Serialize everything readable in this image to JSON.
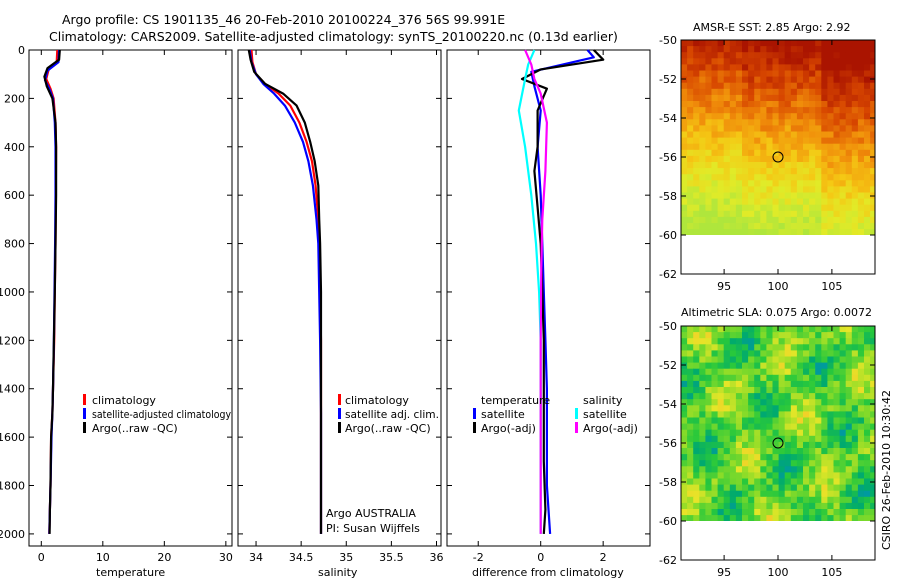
{
  "header": {
    "line1": "Argo profile: CS 1901135_46 20-Feb-2010 20100224_376 56S 99.991E",
    "line2": "Climatology: CARS2009. Satellite-adjusted climatology: synTS_20100220.nc (0.13d earlier)"
  },
  "footer_stamp": "CSIRO 26-Feb-2010 10:30:42",
  "colors": {
    "red": "#ff0000",
    "blue": "#0000ff",
    "black": "#000000",
    "cyan": "#00ffff",
    "magenta": "#ff00ff"
  },
  "chart_data": [
    {
      "type": "line",
      "id": "temperature",
      "xlabel": "temperature",
      "ylabel": "",
      "xlim": [
        -2,
        31
      ],
      "ylim": [
        2050,
        0
      ],
      "xticks": [
        0,
        10,
        20,
        30
      ],
      "xtick_labels": [
        "0",
        "10",
        "20",
        "30"
      ],
      "yticks": [
        0,
        200,
        400,
        600,
        800,
        1000,
        1200,
        1400,
        1600,
        1800,
        2000
      ],
      "ytick_labels": [
        "0",
        "200",
        "400",
        "600",
        "800",
        "1000",
        "1200",
        "1400",
        "1600",
        "1800",
        "2000"
      ],
      "legend": {
        "position": "lower-middle",
        "entries": [
          "climatology",
          "satellite-adjusted climatology",
          "Argo(..raw -QC)"
        ]
      },
      "series": [
        {
          "name": "climatology",
          "color": "red",
          "x": [
            2.6,
            2.5,
            1.2,
            0.8,
            1.5,
            2.0,
            2.3,
            2.4,
            2.35,
            2.3,
            2.2,
            2.1,
            1.9,
            1.8,
            1.6,
            1.5,
            1.4,
            1.3
          ],
          "y": [
            0,
            50,
            80,
            120,
            160,
            200,
            300,
            400,
            600,
            800,
            1000,
            1200,
            1400,
            1500,
            1600,
            1800,
            1900,
            2000
          ]
        },
        {
          "name": "satellite-adjusted climatology",
          "color": "blue",
          "x": [
            2.9,
            2.8,
            1.0,
            0.6,
            1.3,
            1.9,
            2.2,
            2.3,
            2.3,
            2.25,
            2.15,
            2.05,
            1.9,
            1.8,
            1.65,
            1.5,
            1.4,
            1.3
          ],
          "y": [
            0,
            50,
            85,
            125,
            160,
            200,
            300,
            400,
            600,
            800,
            1000,
            1200,
            1400,
            1500,
            1600,
            1800,
            1900,
            2000
          ]
        },
        {
          "name": "Argo(..raw -QC)",
          "color": "black",
          "x": [
            3.0,
            2.9,
            1.0,
            0.5,
            0.9,
            1.8,
            2.3,
            2.4,
            2.4,
            2.3,
            2.2,
            2.05,
            1.9,
            1.8,
            1.6,
            1.5,
            1.4,
            1.35
          ],
          "y": [
            0,
            40,
            75,
            110,
            150,
            200,
            300,
            400,
            600,
            800,
            1000,
            1200,
            1400,
            1500,
            1600,
            1800,
            1900,
            2000
          ]
        }
      ]
    },
    {
      "type": "line",
      "id": "salinity",
      "xlabel": "salinity",
      "ylabel": "",
      "xlim": [
        33.8,
        36.05
      ],
      "ylim": [
        2050,
        0
      ],
      "xticks": [
        34,
        34.5,
        35,
        35.5,
        36
      ],
      "xtick_labels": [
        "34",
        "34.5",
        "35",
        "35.5",
        "36"
      ],
      "legend": {
        "position": "lower-middle",
        "entries": [
          "climatology",
          "satellite adj. clim.",
          "Argo(..raw -QC)"
        ]
      },
      "annotation": {
        "line1": "Argo AUSTRALIA",
        "line2": "PI: Susan Wijffels"
      },
      "series": [
        {
          "name": "climatology",
          "color": "red",
          "x": [
            33.95,
            33.96,
            34.0,
            34.1,
            34.25,
            34.38,
            34.48,
            34.56,
            34.62,
            34.66,
            34.69,
            34.7,
            34.71,
            34.72,
            34.72,
            34.72,
            34.72
          ],
          "y": [
            0,
            50,
            100,
            140,
            180,
            230,
            300,
            380,
            460,
            560,
            700,
            800,
            1000,
            1200,
            1500,
            1800,
            2000
          ]
        },
        {
          "name": "satellite adj. clim.",
          "color": "blue",
          "x": [
            33.93,
            33.95,
            34.0,
            34.08,
            34.2,
            34.32,
            34.43,
            34.52,
            34.58,
            34.63,
            34.67,
            34.69,
            34.7,
            34.71,
            34.72,
            34.72,
            34.72
          ],
          "y": [
            0,
            50,
            100,
            140,
            180,
            230,
            300,
            380,
            460,
            560,
            700,
            800,
            1000,
            1200,
            1500,
            1800,
            2000
          ]
        },
        {
          "name": "Argo(..raw -QC)",
          "color": "black",
          "x": [
            33.92,
            33.94,
            33.98,
            34.1,
            34.3,
            34.45,
            34.54,
            34.6,
            34.65,
            34.69,
            34.7,
            34.71,
            34.72,
            34.72,
            34.72,
            34.72
          ],
          "y": [
            0,
            40,
            90,
            140,
            180,
            230,
            300,
            380,
            460,
            560,
            700,
            800,
            1000,
            1200,
            1500,
            2000
          ]
        }
      ]
    },
    {
      "type": "line",
      "id": "difference",
      "xlabel": "difference from climatology",
      "ylabel": "",
      "xlim": [
        -3,
        3.5
      ],
      "ylim": [
        2050,
        0
      ],
      "xticks": [
        -2,
        0,
        2
      ],
      "xtick_labels": [
        "-2",
        "0",
        "2"
      ],
      "legend": {
        "position": "lower-middle",
        "group_left_title": "temperature",
        "group_right_title": "salinity",
        "entries": [
          "satellite",
          "Argo(-adj)",
          "satellite",
          "Argo(-adj)"
        ]
      },
      "series": [
        {
          "name": "temperature satellite",
          "color": "blue",
          "x": [
            1.5,
            1.7,
            -0.3,
            -0.2,
            0.0,
            -0.1,
            0.0,
            0.05,
            0.1,
            0.15,
            0.2,
            0.2,
            0.2,
            0.2,
            0.25,
            0.3
          ],
          "y": [
            0,
            30,
            90,
            150,
            250,
            400,
            600,
            800,
            1000,
            1200,
            1400,
            1500,
            1600,
            1800,
            1900,
            2000
          ]
        },
        {
          "name": "temperature Argo(-adj)",
          "color": "black",
          "x": [
            1.7,
            2.0,
            0.0,
            -0.6,
            0.2,
            -0.1,
            -0.1,
            -0.2,
            -0.1,
            0.0,
            0.05,
            0.1,
            0.1,
            0.1,
            0.15,
            0.1
          ],
          "y": [
            0,
            40,
            80,
            120,
            160,
            250,
            400,
            500,
            650,
            800,
            1000,
            1200,
            1500,
            1700,
            1900,
            2000
          ]
        },
        {
          "name": "salinity satellite",
          "color": "cyan",
          "x": [
            -0.2,
            -0.4,
            -0.5,
            -0.7,
            -0.5,
            -0.3,
            -0.15,
            -0.05,
            0.0,
            0.0,
            0.0,
            0.0
          ],
          "y": [
            0,
            60,
            120,
            250,
            400,
            600,
            800,
            1000,
            1200,
            1500,
            1800,
            2000
          ]
        },
        {
          "name": "salinity Argo(-adj)",
          "color": "magenta",
          "x": [
            -0.5,
            -0.3,
            -0.2,
            0.0,
            0.2,
            0.15,
            0.05,
            0.02,
            0.0,
            0.0,
            0.0
          ],
          "y": [
            0,
            60,
            120,
            180,
            300,
            500,
            700,
            900,
            1200,
            1600,
            2000
          ]
        }
      ]
    },
    {
      "type": "heatmap",
      "id": "sst",
      "title": "AMSR-E SST: 2.85  Argo: 2.92",
      "xlim": [
        91,
        109
      ],
      "ylim": [
        -62,
        -50
      ],
      "xticks": [
        95,
        100,
        105
      ],
      "xtick_labels": [
        "95",
        "100",
        "105"
      ],
      "yticks": [
        -50,
        -52,
        -54,
        -56,
        -58,
        -60,
        -62
      ],
      "ytick_labels": [
        "-50",
        "-52",
        "-54",
        "-56",
        "-58",
        "-60",
        "-62"
      ],
      "data_bottom_lat": -60,
      "marker": {
        "lon": 100,
        "lat": -56
      }
    },
    {
      "type": "heatmap",
      "id": "sla",
      "title": "Altimetric SLA: 0.075  Argo: 0.0072",
      "xlim": [
        91,
        109
      ],
      "ylim": [
        -62,
        -50
      ],
      "xticks": [
        95,
        100,
        105
      ],
      "xtick_labels": [
        "95",
        "100",
        "105"
      ],
      "yticks": [
        -50,
        -52,
        -54,
        -56,
        -58,
        -60,
        -62
      ],
      "ytick_labels": [
        "-50",
        "-52",
        "-54",
        "-56",
        "-58",
        "-60",
        "-62"
      ],
      "data_bottom_lat": -60,
      "marker": {
        "lon": 100,
        "lat": -56
      }
    }
  ]
}
